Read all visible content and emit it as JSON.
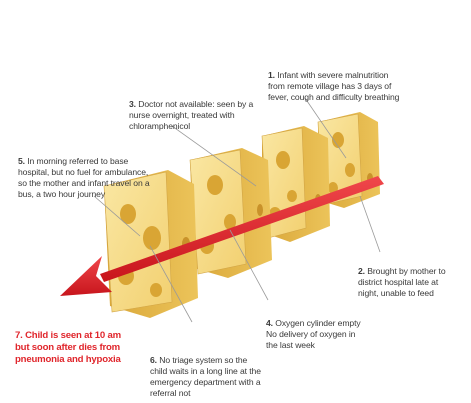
{
  "steps": [
    {
      "num": "1.",
      "text": "Infant with severe malnutrition\nfrom remote village has 3 days of\nfever, cough and difficulty breathing"
    },
    {
      "num": "2.",
      "text": "Brought by mother to\ndistrict hospital late at\nnight, unable to feed"
    },
    {
      "num": "3.",
      "text": "Doctor not available: seen by a\nnurse overnight, treated with\nchloramphenicol"
    },
    {
      "num": "4.",
      "text": "Oxygen cylinder empty\nNo delivery of oxygen in\nthe last week"
    },
    {
      "num": "5.",
      "text": "In morning referred to base\nhospital, but no fuel for ambulance,\nso the mother and infant travel on a\nbus, a two hour journey"
    },
    {
      "num": "6.",
      "text": "No triage system so the\nchild waits in a long line at the\nemergency department with a\nreferral not"
    }
  ],
  "outcome": "7. Child is seen at 10 am\nbut soon after dies from\npneumonia and hypoxia",
  "colors": {
    "cheese_face": "#f7dc86",
    "cheese_side": "#e7bb4c",
    "cheese_hole": "#d9a534",
    "arrow": "#e2232a",
    "text": "#3a3a3a",
    "outcome_text": "#e0262c"
  }
}
